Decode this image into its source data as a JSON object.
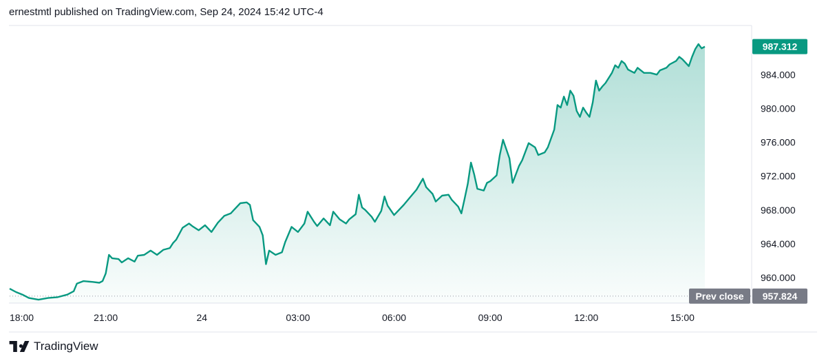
{
  "header": {
    "text": "ernestmtl published on TradingView.com, Sep 24, 2024 15:42 UTC-4"
  },
  "footer": {
    "brand": "TradingView"
  },
  "colors": {
    "line": "#089981",
    "area_top": "#089981",
    "prev_close_bg": "#787b86",
    "last_bg": "#089981"
  },
  "chart_data": {
    "type": "area",
    "ylim": [
      957.0,
      989.8
    ],
    "y_ticks": [
      "960.000",
      "964.000",
      "968.000",
      "972.000",
      "976.000",
      "980.000",
      "984.000"
    ],
    "x_ticks": [
      {
        "x": 0,
        "label": "18:00"
      },
      {
        "x": 3,
        "label": "21:00"
      },
      {
        "x": 6,
        "label": "24"
      },
      {
        "x": 9,
        "label": "03:00"
      },
      {
        "x": 12,
        "label": "06:00"
      },
      {
        "x": 15,
        "label": "09:00"
      },
      {
        "x": 18,
        "label": "12:00"
      },
      {
        "x": 21,
        "label": "15:00"
      }
    ],
    "x_range": [
      0,
      21.7
    ],
    "prev_close": {
      "label": "Prev close",
      "value": "957.824",
      "y": 957.824
    },
    "last_price": {
      "value": "987.312",
      "y": 987.312
    },
    "series": [
      {
        "values": [
          [
            0.0,
            958.7
          ],
          [
            0.2,
            958.3
          ],
          [
            0.4,
            958.0
          ],
          [
            0.6,
            957.6
          ],
          [
            0.9,
            957.4
          ],
          [
            1.2,
            957.6
          ],
          [
            1.5,
            957.7
          ],
          [
            1.8,
            958.0
          ],
          [
            2.0,
            958.4
          ],
          [
            2.1,
            959.3
          ],
          [
            2.3,
            959.6
          ],
          [
            2.6,
            959.5
          ],
          [
            2.8,
            959.4
          ],
          [
            2.9,
            959.6
          ],
          [
            3.0,
            960.5
          ],
          [
            3.1,
            962.7
          ],
          [
            3.2,
            962.3
          ],
          [
            3.4,
            962.2
          ],
          [
            3.5,
            961.8
          ],
          [
            3.7,
            962.3
          ],
          [
            3.9,
            961.9
          ],
          [
            4.0,
            962.6
          ],
          [
            4.2,
            962.7
          ],
          [
            4.4,
            963.2
          ],
          [
            4.6,
            962.7
          ],
          [
            4.8,
            963.3
          ],
          [
            5.0,
            963.5
          ],
          [
            5.1,
            964.1
          ],
          [
            5.2,
            964.5
          ],
          [
            5.4,
            965.9
          ],
          [
            5.6,
            966.4
          ],
          [
            5.7,
            966.1
          ],
          [
            5.9,
            965.6
          ],
          [
            6.1,
            966.2
          ],
          [
            6.3,
            965.4
          ],
          [
            6.5,
            966.5
          ],
          [
            6.7,
            967.3
          ],
          [
            6.9,
            967.6
          ],
          [
            7.0,
            968.0
          ],
          [
            7.2,
            968.8
          ],
          [
            7.4,
            968.9
          ],
          [
            7.5,
            968.6
          ],
          [
            7.6,
            966.8
          ],
          [
            7.8,
            966.0
          ],
          [
            7.9,
            965.0
          ],
          [
            8.0,
            961.6
          ],
          [
            8.1,
            963.2
          ],
          [
            8.3,
            962.7
          ],
          [
            8.5,
            963.0
          ],
          [
            8.6,
            964.2
          ],
          [
            8.8,
            966.0
          ],
          [
            9.0,
            965.4
          ],
          [
            9.2,
            966.4
          ],
          [
            9.3,
            967.8
          ],
          [
            9.5,
            966.6
          ],
          [
            9.6,
            966.1
          ],
          [
            9.8,
            967.0
          ],
          [
            10.0,
            966.2
          ],
          [
            10.1,
            967.8
          ],
          [
            10.3,
            966.9
          ],
          [
            10.5,
            966.4
          ],
          [
            10.6,
            966.9
          ],
          [
            10.8,
            967.5
          ],
          [
            10.9,
            969.8
          ],
          [
            11.0,
            968.3
          ],
          [
            11.1,
            968.0
          ],
          [
            11.3,
            967.2
          ],
          [
            11.4,
            966.6
          ],
          [
            11.6,
            967.9
          ],
          [
            11.7,
            969.6
          ],
          [
            11.8,
            968.5
          ],
          [
            12.0,
            967.4
          ],
          [
            12.1,
            967.8
          ],
          [
            12.3,
            968.6
          ],
          [
            12.5,
            969.5
          ],
          [
            12.7,
            970.4
          ],
          [
            12.9,
            971.7
          ],
          [
            13.0,
            970.7
          ],
          [
            13.2,
            969.9
          ],
          [
            13.3,
            969.0
          ],
          [
            13.5,
            969.7
          ],
          [
            13.7,
            969.8
          ],
          [
            13.8,
            969.2
          ],
          [
            14.0,
            968.4
          ],
          [
            14.1,
            967.6
          ],
          [
            14.2,
            969.3
          ],
          [
            14.3,
            971.1
          ],
          [
            14.4,
            973.6
          ],
          [
            14.5,
            972.2
          ],
          [
            14.6,
            970.5
          ],
          [
            14.8,
            970.3
          ],
          [
            14.9,
            971.2
          ],
          [
            15.0,
            971.4
          ],
          [
            15.2,
            972.1
          ],
          [
            15.3,
            974.5
          ],
          [
            15.4,
            976.3
          ],
          [
            15.6,
            974.1
          ],
          [
            15.7,
            971.2
          ],
          [
            15.9,
            973.2
          ],
          [
            16.0,
            973.9
          ],
          [
            16.2,
            975.9
          ],
          [
            16.4,
            975.4
          ],
          [
            16.5,
            974.5
          ],
          [
            16.7,
            974.8
          ],
          [
            16.8,
            975.4
          ],
          [
            17.0,
            977.5
          ],
          [
            17.1,
            980.4
          ],
          [
            17.2,
            980.1
          ],
          [
            17.3,
            981.4
          ],
          [
            17.4,
            980.4
          ],
          [
            17.5,
            982.1
          ],
          [
            17.6,
            981.5
          ],
          [
            17.7,
            979.7
          ],
          [
            17.8,
            979.0
          ],
          [
            17.9,
            980.1
          ],
          [
            18.0,
            979.5
          ],
          [
            18.1,
            979.0
          ],
          [
            18.2,
            980.7
          ],
          [
            18.3,
            983.3
          ],
          [
            18.4,
            982.1
          ],
          [
            18.5,
            982.6
          ],
          [
            18.6,
            983.0
          ],
          [
            18.8,
            984.2
          ],
          [
            18.9,
            985.1
          ],
          [
            19.0,
            984.8
          ],
          [
            19.1,
            985.6
          ],
          [
            19.2,
            985.3
          ],
          [
            19.3,
            984.6
          ],
          [
            19.5,
            984.2
          ],
          [
            19.6,
            984.8
          ],
          [
            19.8,
            984.2
          ],
          [
            20.0,
            984.2
          ],
          [
            20.2,
            984.0
          ],
          [
            20.3,
            984.5
          ],
          [
            20.5,
            984.8
          ],
          [
            20.6,
            985.2
          ],
          [
            20.8,
            985.6
          ],
          [
            20.9,
            986.1
          ],
          [
            21.0,
            985.8
          ],
          [
            21.2,
            985.0
          ],
          [
            21.3,
            986.1
          ],
          [
            21.4,
            987.0
          ],
          [
            21.5,
            987.6
          ],
          [
            21.6,
            987.1
          ],
          [
            21.7,
            987.3
          ]
        ]
      }
    ]
  }
}
